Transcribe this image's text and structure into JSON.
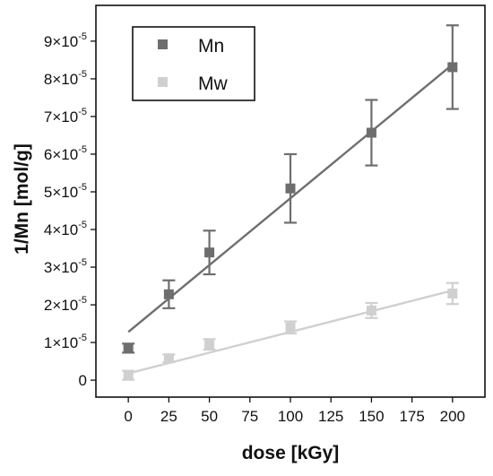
{
  "chart_data": {
    "type": "scatter",
    "xlabel": "dose [kGy]",
    "ylabel": "1/Mn [mol/g]",
    "xlim": [
      -20,
      220
    ],
    "ylim": [
      -4.5e-06,
      9.95e-05
    ],
    "x_ticks": [
      0,
      25,
      50,
      75,
      100,
      125,
      150,
      175,
      200
    ],
    "y_ticks": [
      {
        "value": 0,
        "label": "0",
        "exp": ""
      },
      {
        "value": 1e-05,
        "label": "1×10",
        "exp": "-5"
      },
      {
        "value": 2e-05,
        "label": "2×10",
        "exp": "-5"
      },
      {
        "value": 3e-05,
        "label": "3×10",
        "exp": "-5"
      },
      {
        "value": 4e-05,
        "label": "4×10",
        "exp": "-5"
      },
      {
        "value": 5e-05,
        "label": "5×10",
        "exp": "-5"
      },
      {
        "value": 6e-05,
        "label": "6×10",
        "exp": "-5"
      },
      {
        "value": 7e-05,
        "label": "7×10",
        "exp": "-5"
      },
      {
        "value": 8e-05,
        "label": "8×10",
        "exp": "-5"
      },
      {
        "value": 9e-05,
        "label": "9×10",
        "exp": "-5"
      }
    ],
    "legend_position": "top-left",
    "series": [
      {
        "name": "Mn",
        "color": "#6e6e6e",
        "x": [
          0,
          25,
          50,
          100,
          150,
          200
        ],
        "y": [
          8.5e-06,
          2.28e-05,
          3.39e-05,
          5.09e-05,
          6.57e-05,
          8.31e-05
        ],
        "err": [
          1.2e-06,
          3.7e-06,
          5.8e-06,
          9.1e-06,
          8.7e-06,
          1.11e-05
        ],
        "fit": {
          "x": [
            0,
            200
          ],
          "y": [
            1.28e-05,
            8.38e-05
          ]
        }
      },
      {
        "name": "Mw",
        "color": "#d0d0d0",
        "x": [
          0,
          25,
          50,
          100,
          150,
          200
        ],
        "y": [
          1.3e-06,
          5.8e-06,
          9.5e-06,
          1.4e-05,
          1.85e-05,
          2.3e-05
        ],
        "err": [
          1.2e-06,
          1e-06,
          1.4e-06,
          1.6e-06,
          2e-06,
          2.8e-06
        ],
        "fit": {
          "x": [
            0,
            200
          ],
          "y": [
            1.8e-06,
            2.38e-05
          ]
        }
      }
    ]
  }
}
